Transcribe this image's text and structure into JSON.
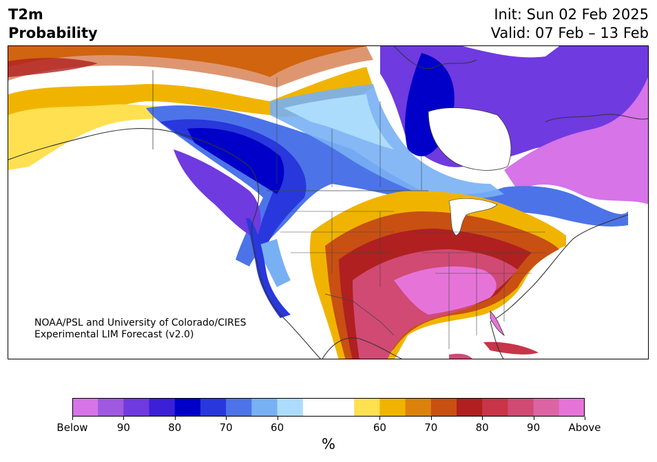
{
  "title": {
    "line1": "T2m",
    "line2": "Probability"
  },
  "init_text": "Init: Sun 02 Feb 2025",
  "valid_text": "Valid: 07 Feb – 13 Feb",
  "credit": {
    "line1": "NOAA/PSL and University of Colorado/CIRES",
    "line2": "Experimental LIM Forecast (v2.0)"
  },
  "colorbar": {
    "unit": "%",
    "colors": [
      "#d674e8",
      "#9f58e0",
      "#6f3ae0",
      "#3b20d8",
      "#0000c8",
      "#2838dc",
      "#4c74e8",
      "#78b0f4",
      "#acdcfc",
      "#ffffff",
      "#ffffff",
      "#ffe050",
      "#f0b400",
      "#dc820c",
      "#c85012",
      "#b02020",
      "#c83448",
      "#d04a74",
      "#dc64a4",
      "#e674d8"
    ],
    "tick_labels": [
      "Below",
      "90",
      "80",
      "70",
      "60",
      "60",
      "70",
      "80",
      "90",
      "Above"
    ]
  },
  "icons": [
    "coastline-map",
    "state-borders",
    "country-borders"
  ]
}
